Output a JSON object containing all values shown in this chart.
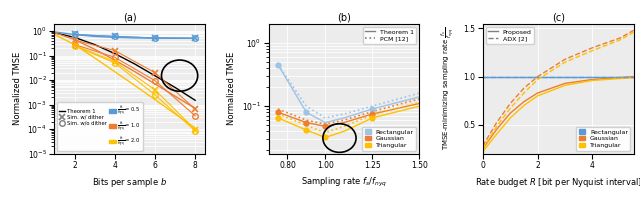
{
  "fig_width": 6.4,
  "fig_height": 1.97,
  "dpi": 100,
  "bg_color": "#ececec",
  "panel_a": {
    "title": "(a)",
    "xlabel": "Bits per sample $b$",
    "ylabel": "Normalized TMSE",
    "xlim": [
      1,
      8.5
    ],
    "ylim_log": [
      -5,
      0.3
    ],
    "xticks": [
      2,
      4,
      6,
      8
    ],
    "colors": {
      "blue": "#5b9bd5",
      "orange": "#ed7d31",
      "gold": "#ffc000"
    },
    "theorem1_black": {
      "b": [
        1,
        2,
        3,
        4,
        5,
        6,
        7,
        8
      ],
      "y": [
        0.85,
        0.55,
        0.28,
        0.12,
        0.045,
        0.015,
        0.005,
        0.0015
      ]
    },
    "theorem1_blue": {
      "b": [
        1,
        2,
        3,
        4,
        5,
        6,
        7,
        8
      ],
      "y": [
        0.92,
        0.72,
        0.6,
        0.55,
        0.52,
        0.51,
        0.505,
        0.502
      ]
    },
    "theorem1_orange": {
      "b": [
        1,
        2,
        3,
        4,
        5,
        6,
        7,
        8
      ],
      "y": [
        0.85,
        0.45,
        0.18,
        0.065,
        0.022,
        0.007,
        0.0022,
        0.0007
      ]
    },
    "theorem1_gold": {
      "b": [
        1,
        2,
        3,
        4,
        5,
        6,
        7,
        8
      ],
      "y": [
        0.72,
        0.28,
        0.08,
        0.022,
        0.006,
        0.0016,
        0.00042,
        0.00011
      ]
    },
    "sim_dither_blue": {
      "b": [
        2,
        4,
        6,
        8
      ],
      "y": [
        0.72,
        0.6,
        0.52,
        0.505
      ]
    },
    "sim_dither_orange": {
      "b": [
        2,
        4,
        6,
        8
      ],
      "y": [
        0.43,
        0.16,
        0.02,
        0.00065
      ]
    },
    "sim_dither_gold": {
      "b": [
        2,
        4,
        6,
        8
      ],
      "y": [
        0.26,
        0.057,
        0.004,
        9.5e-05
      ]
    },
    "sim_nodither_blue": {
      "b": [
        2,
        4,
        6,
        8
      ],
      "y": [
        0.72,
        0.6,
        0.52,
        0.505
      ]
    },
    "sim_nodither_orange": {
      "b": [
        2,
        4,
        6,
        8
      ],
      "y": [
        0.28,
        0.085,
        0.0095,
        0.00035
      ]
    },
    "sim_nodither_gold": {
      "b": [
        2,
        4,
        6,
        8
      ],
      "y": [
        0.25,
        0.05,
        0.0025,
        8.5e-05
      ]
    }
  },
  "panel_b": {
    "title": "(b)",
    "xlabel": "Sampling rate $f_s / f_{nyq}$",
    "ylabel": "Normalized TMSE",
    "xlim": [
      0.7,
      1.5
    ],
    "ylim_log": [
      -1.75,
      0.3
    ],
    "xticks": [
      0.8,
      1.0,
      1.25,
      1.5
    ],
    "colors": {
      "blue": "#9dc3e6",
      "orange": "#ed7d31",
      "gold": "#ffc000"
    },
    "theorem1_blue": {
      "x": [
        0.75,
        0.9,
        1.0,
        1.1,
        1.25,
        1.5
      ],
      "y": [
        0.45,
        0.08,
        0.055,
        0.065,
        0.09,
        0.14
      ]
    },
    "theorem1_orange": {
      "x": [
        0.75,
        0.9,
        1.0,
        1.1,
        1.25,
        1.5
      ],
      "y": [
        0.08,
        0.055,
        0.048,
        0.055,
        0.075,
        0.11
      ]
    },
    "theorem1_gold": {
      "x": [
        0.75,
        0.9,
        1.0,
        1.1,
        1.25,
        1.5
      ],
      "y": [
        0.065,
        0.042,
        0.032,
        0.04,
        0.065,
        0.1
      ]
    },
    "pcm_blue": {
      "x": [
        0.75,
        0.9,
        1.0,
        1.1,
        1.25,
        1.5
      ],
      "y": [
        0.45,
        0.1,
        0.065,
        0.075,
        0.1,
        0.16
      ]
    },
    "pcm_orange": {
      "x": [
        0.75,
        0.9,
        1.0,
        1.1,
        1.25,
        1.5
      ],
      "y": [
        0.09,
        0.06,
        0.052,
        0.06,
        0.082,
        0.13
      ]
    },
    "pcm_gold": {
      "x": [
        0.75,
        0.9,
        1.0,
        1.1,
        1.25,
        1.5
      ],
      "y": [
        0.075,
        0.05,
        0.038,
        0.048,
        0.072,
        0.115
      ]
    },
    "marker_blue": {
      "x": [
        0.75,
        0.9,
        1.25
      ],
      "y": [
        0.45,
        0.08,
        0.09
      ]
    },
    "marker_orange": {
      "x": [
        0.75,
        0.9,
        1.0,
        1.25
      ],
      "y": [
        0.08,
        0.055,
        0.048,
        0.075
      ]
    },
    "marker_gold": {
      "x": [
        0.75,
        0.9,
        1.0,
        1.25
      ],
      "y": [
        0.065,
        0.042,
        0.032,
        0.065
      ]
    }
  },
  "panel_c": {
    "title": "(c)",
    "xlabel": "Rate budget $R$ [bit per Nyquist interval]",
    "ylabel": "TMSE-minimizing sampling rate $\\frac{f_s}{f_{nyq}}$",
    "xlim": [
      0,
      5.5
    ],
    "ylim": [
      0.2,
      1.55
    ],
    "yticks": [
      0.5,
      1.0,
      1.5
    ],
    "xticks": [
      0,
      2,
      4
    ],
    "colors": {
      "blue": "#5b9bd5",
      "orange": "#ed7d31",
      "gold": "#ffc000"
    },
    "proposed_blue": {
      "x": [
        0,
        5.5
      ],
      "y": [
        1.0,
        1.0
      ]
    },
    "proposed_orange": {
      "x": [
        0,
        0.5,
        1,
        1.5,
        2,
        3,
        4,
        5,
        5.5
      ],
      "y": [
        0.25,
        0.45,
        0.62,
        0.74,
        0.83,
        0.93,
        0.97,
        0.99,
        1.0
      ]
    },
    "proposed_gold": {
      "x": [
        0,
        0.5,
        1,
        1.5,
        2,
        3,
        4,
        5,
        5.5
      ],
      "y": [
        0.22,
        0.4,
        0.57,
        0.7,
        0.8,
        0.91,
        0.96,
        0.98,
        0.99
      ]
    },
    "adx_blue": {
      "x": [
        0,
        5.5
      ],
      "y": [
        1.0,
        1.0
      ]
    },
    "adx_orange": {
      "x": [
        0,
        0.5,
        1,
        1.5,
        2,
        3,
        4,
        5,
        5.5
      ],
      "y": [
        0.28,
        0.52,
        0.72,
        0.88,
        1.0,
        1.18,
        1.3,
        1.4,
        1.48
      ]
    },
    "adx_gold": {
      "x": [
        0,
        0.5,
        1,
        1.5,
        2,
        3,
        4,
        5,
        5.5
      ],
      "y": [
        0.25,
        0.48,
        0.67,
        0.83,
        0.97,
        1.15,
        1.27,
        1.38,
        1.46
      ]
    }
  }
}
